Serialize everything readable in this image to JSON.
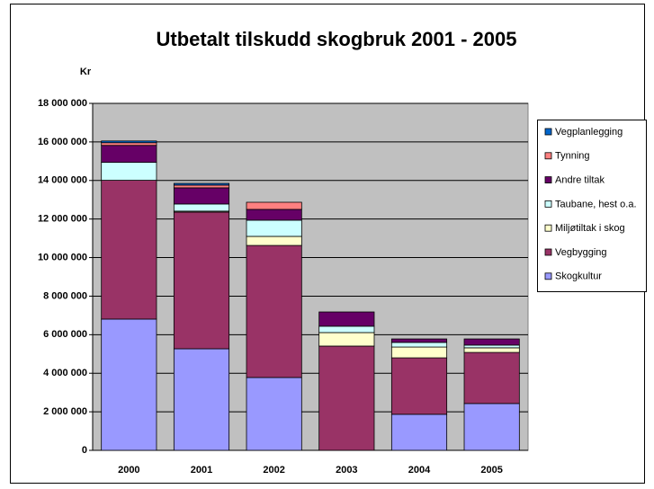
{
  "chart_data": {
    "type": "stacked_bar",
    "title": "Utbetalt tilskudd skogbruk 2001 - 2005",
    "y_label": "Kr",
    "categories": [
      "2000",
      "2001",
      "2002",
      "2003",
      "2004",
      "2005"
    ],
    "series": [
      {
        "name": "Skogkultur",
        "color": "#9999FF",
        "values": [
          6810000,
          5270000,
          3780000,
          0,
          1870000,
          2430000
        ]
      },
      {
        "name": "Vegbygging",
        "color": "#993366",
        "values": [
          7200000,
          7090000,
          6850000,
          5410000,
          2930000,
          2650000
        ]
      },
      {
        "name": "Miljøtiltak i skog",
        "color": "#FFFFCC",
        "values": [
          0,
          50000,
          470000,
          700000,
          560000,
          240000
        ]
      },
      {
        "name": "Taubane, hest o.a.",
        "color": "#CCFFFF",
        "values": [
          930000,
          370000,
          840000,
          330000,
          240000,
          140000
        ]
      },
      {
        "name": "Andre tiltak",
        "color": "#660066",
        "values": [
          880000,
          840000,
          560000,
          740000,
          180000,
          320000
        ]
      },
      {
        "name": "Tynning",
        "color": "#FF8080",
        "values": [
          140000,
          140000,
          370000,
          0,
          0,
          0
        ]
      },
      {
        "name": "Vegplanlegging",
        "color": "#0066CC",
        "values": [
          90000,
          90000,
          0,
          0,
          0,
          0
        ]
      }
    ],
    "ylim": [
      0,
      18000000
    ],
    "yticks": [
      0,
      {
        "value": 2000000,
        "label": "2 000 000"
      },
      {
        "value": 4000000,
        "label": "4 000 000"
      },
      {
        "value": 6000000,
        "label": "6 000 000"
      },
      {
        "value": 8000000,
        "label": "8 000 000"
      },
      {
        "value": 10000000,
        "label": "10 000 000"
      },
      {
        "value": 12000000,
        "label": "12 000 000"
      },
      {
        "value": 14000000,
        "label": "14 000 000"
      },
      {
        "value": 16000000,
        "label": "16 000 000"
      },
      {
        "value": 18000000,
        "label": "18 000 000"
      }
    ],
    "grid": true,
    "plot_background": "#C0C0C0",
    "legend": "right"
  }
}
